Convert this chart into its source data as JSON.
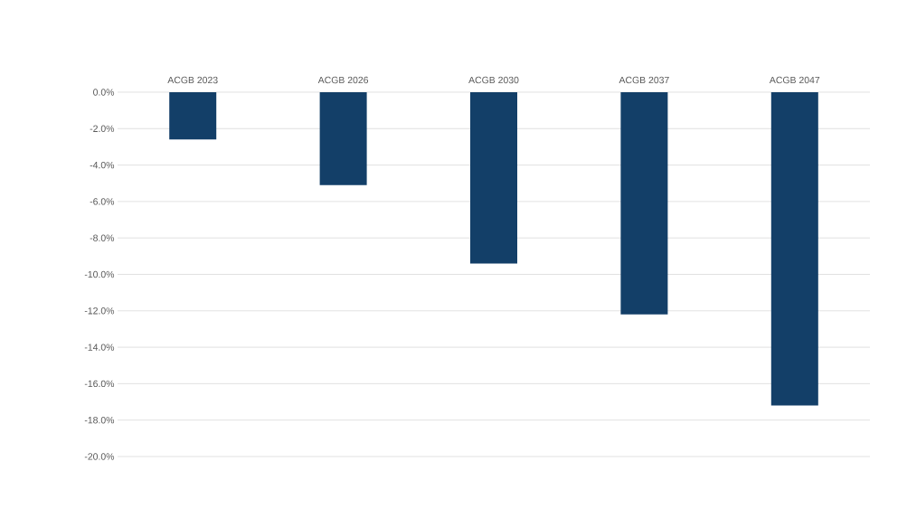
{
  "chart_data": {
    "type": "bar",
    "categories": [
      "ACGB 2023",
      "ACGB 2026",
      "ACGB 2030",
      "ACGB 2037",
      "ACGB 2047"
    ],
    "values": [
      -2.6,
      -5.1,
      -9.4,
      -12.2,
      -17.2
    ],
    "color": "#133f68",
    "ylim": [
      -20,
      0
    ],
    "yticks": [
      {
        "value": 0,
        "label": "0.0%"
      },
      {
        "value": -2,
        "label": "-2.0%"
      },
      {
        "value": -4,
        "label": "-4.0%"
      },
      {
        "value": -6,
        "label": "-6.0%"
      },
      {
        "value": -8,
        "label": "-8.0%"
      },
      {
        "value": -10,
        "label": "-10.0%"
      },
      {
        "value": -12,
        "label": "-12.0%"
      },
      {
        "value": -14,
        "label": "-14.0%"
      },
      {
        "value": -16,
        "label": "-16.0%"
      },
      {
        "value": -18,
        "label": "-18.0%"
      },
      {
        "value": -20,
        "label": "-20.0%"
      }
    ],
    "grid": "y"
  }
}
